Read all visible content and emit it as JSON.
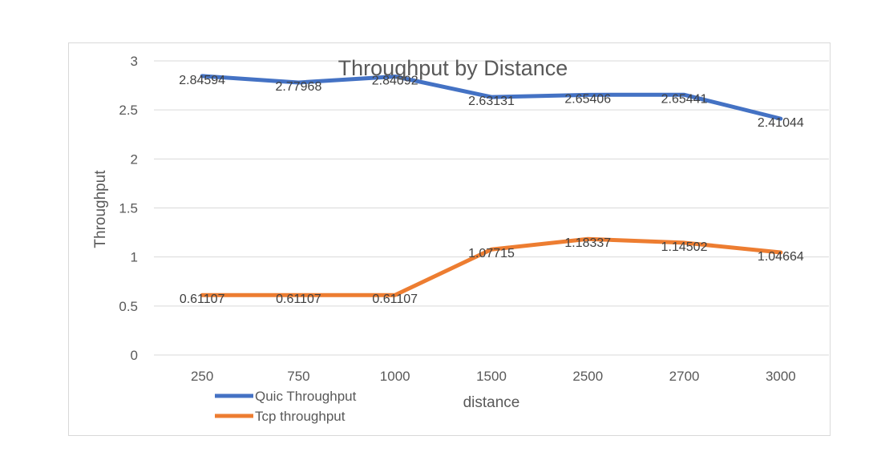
{
  "chart_data": {
    "type": "line",
    "title": "Throughput by Distance",
    "xlabel": "distance",
    "ylabel": "Throughput",
    "categories": [
      "250",
      "750",
      "1000",
      "1500",
      "2500",
      "2700",
      "3000"
    ],
    "ylim": [
      0,
      3
    ],
    "yticks": [
      "0",
      "0.5",
      "1",
      "1.5",
      "2",
      "2.5",
      "3"
    ],
    "grid": true,
    "legend_position": "bottom-left",
    "series": [
      {
        "name": "Quic Throughput",
        "color": "#4472C4",
        "values": [
          2.84594,
          2.77968,
          2.84092,
          2.63131,
          2.65406,
          2.65441,
          2.41044
        ],
        "labels": [
          "2.84594",
          "2.77968",
          "2.84092",
          "2.63131",
          "2.65406",
          "2.65441",
          "2.41044"
        ]
      },
      {
        "name": "Tcp throughput",
        "color": "#ED7D31",
        "values": [
          0.61107,
          0.61107,
          0.61107,
          1.07715,
          1.18337,
          1.14502,
          1.04664
        ],
        "labels": [
          "0.61107",
          "0.61107",
          "0.61107",
          "1.07715",
          "1.18337",
          "1.14502",
          "1.04664"
        ]
      }
    ]
  }
}
